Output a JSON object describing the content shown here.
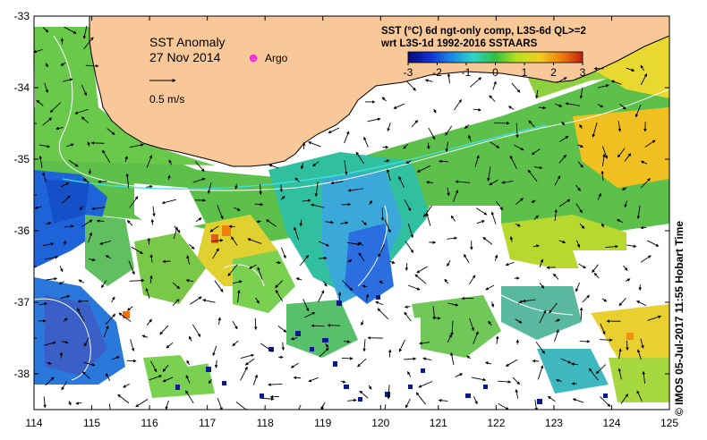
{
  "map": {
    "title": "SST Anomaly",
    "date": "27 Nov 2014",
    "argo_label": "Argo",
    "scale_label": "0.5 m/s",
    "product_line1": "SST (°C) 6d ngt-only comp, L3S-6d QL>=2",
    "product_line2": "wrt L3S-1d 1992-2016 SSTAARS",
    "credit": "© IMOS 05-Jul-2017 11:55 Hobart Time"
  },
  "colorbar": {
    "ticks": [
      "-3",
      "-2",
      "-1",
      "0",
      "1",
      "2",
      "3"
    ],
    "min": -3,
    "max": 3,
    "colors": [
      "#0a0a7a",
      "#1030d0",
      "#1a8ae8",
      "#2ed4c8",
      "#30c040",
      "#b8e020",
      "#f0d020",
      "#f08010",
      "#c02010"
    ]
  },
  "axes": {
    "lon_labels": [
      "114",
      "115",
      "116",
      "117",
      "118",
      "119",
      "120",
      "121",
      "122",
      "123",
      "124",
      "125"
    ],
    "lat_labels": [
      "-33",
      "-34",
      "-35",
      "-36",
      "-37",
      "-38"
    ],
    "lon_range": [
      114,
      125
    ],
    "lat_range": [
      -33,
      -38.5
    ]
  },
  "colors": {
    "land": "#f8c898",
    "argo": "#ff00ff",
    "cold": "#1e64d8",
    "neutral": "#58c050",
    "warm": "#f0b020"
  }
}
